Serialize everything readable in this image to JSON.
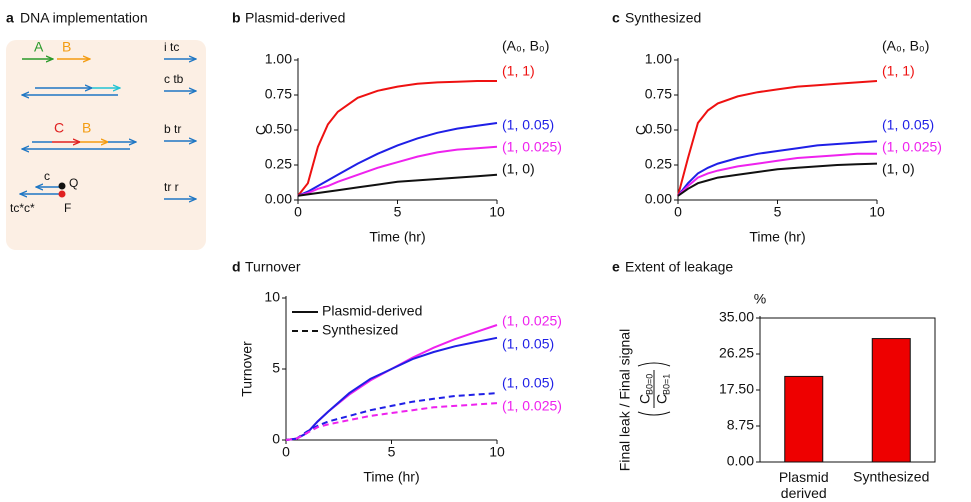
{
  "panel_a": {
    "letter": "a",
    "title": "DNA implementation",
    "top_labels": [
      "A",
      "B"
    ],
    "middle_labels": [
      "C",
      "B"
    ],
    "reporter": {
      "top": "c",
      "quencher": "Q",
      "bottom": "tc*c*",
      "fluor": "F"
    },
    "inputs": [
      "i tc",
      "c tb",
      "b tr",
      "tr r"
    ]
  },
  "chart_data": [
    {
      "type": "line",
      "letter": "b",
      "title": "Plasmid-derived",
      "xlabel": "Time (hr)",
      "ylabel": "C",
      "legend_title": "(A₀, B₀)",
      "xlim": [
        0,
        10
      ],
      "xticks": [
        0,
        5,
        10
      ],
      "ylim": [
        0,
        1
      ],
      "yticks": [
        {
          "value": 0,
          "label": "0.00"
        },
        {
          "value": 0.25,
          "label": "0.25"
        },
        {
          "value": 0.5,
          "label": "0.50"
        },
        {
          "value": 0.75,
          "label": "0.75"
        },
        {
          "value": 1,
          "label": "1.00"
        }
      ],
      "x": [
        0,
        0.5,
        1,
        1.5,
        2,
        3,
        4,
        5,
        6,
        7,
        8,
        9,
        10
      ],
      "series": [
        {
          "name": "(1, 1)",
          "color": "#ee1111",
          "values": [
            0.03,
            0.12,
            0.38,
            0.54,
            0.63,
            0.73,
            0.78,
            0.81,
            0.83,
            0.84,
            0.845,
            0.85,
            0.85
          ]
        },
        {
          "name": "(1, 0.05)",
          "color": "#1f1fe6",
          "values": [
            0.03,
            0.06,
            0.1,
            0.14,
            0.18,
            0.26,
            0.33,
            0.39,
            0.44,
            0.48,
            0.51,
            0.53,
            0.55
          ]
        },
        {
          "name": "(1, 0.025)",
          "color": "#ee22ee",
          "values": [
            0.03,
            0.05,
            0.08,
            0.1,
            0.13,
            0.18,
            0.23,
            0.27,
            0.31,
            0.34,
            0.36,
            0.37,
            0.38
          ]
        },
        {
          "name": "(1, 0)",
          "color": "#111111",
          "values": [
            0.03,
            0.04,
            0.05,
            0.06,
            0.07,
            0.09,
            0.11,
            0.13,
            0.14,
            0.15,
            0.16,
            0.17,
            0.18
          ]
        }
      ]
    },
    {
      "type": "line",
      "letter": "c",
      "title": "Synthesized",
      "xlabel": "Time (hr)",
      "ylabel": "C",
      "legend_title": "(A₀, B₀)",
      "xlim": [
        0,
        10
      ],
      "xticks": [
        0,
        5,
        10
      ],
      "ylim": [
        0,
        1
      ],
      "yticks": [
        {
          "value": 0,
          "label": "0.00"
        },
        {
          "value": 0.25,
          "label": "0.25"
        },
        {
          "value": 0.5,
          "label": "0.50"
        },
        {
          "value": 0.75,
          "label": "0.75"
        },
        {
          "value": 1,
          "label": "1.00"
        }
      ],
      "x": [
        0,
        0.5,
        1,
        1.5,
        2,
        3,
        4,
        5,
        6,
        7,
        8,
        9,
        10
      ],
      "series": [
        {
          "name": "(1, 1)",
          "color": "#ee1111",
          "values": [
            0.03,
            0.3,
            0.55,
            0.64,
            0.69,
            0.74,
            0.77,
            0.79,
            0.81,
            0.82,
            0.83,
            0.84,
            0.85
          ]
        },
        {
          "name": "(1, 0.05)",
          "color": "#1f1fe6",
          "values": [
            0.03,
            0.12,
            0.19,
            0.23,
            0.26,
            0.3,
            0.33,
            0.35,
            0.37,
            0.39,
            0.4,
            0.41,
            0.42
          ]
        },
        {
          "name": "(1, 0.025)",
          "color": "#ee22ee",
          "values": [
            0.03,
            0.1,
            0.16,
            0.19,
            0.21,
            0.24,
            0.26,
            0.28,
            0.3,
            0.31,
            0.32,
            0.33,
            0.33
          ]
        },
        {
          "name": "(1, 0)",
          "color": "#111111",
          "values": [
            0.03,
            0.08,
            0.12,
            0.14,
            0.16,
            0.18,
            0.2,
            0.22,
            0.23,
            0.24,
            0.25,
            0.255,
            0.26
          ]
        }
      ]
    },
    {
      "type": "line",
      "letter": "d",
      "title": "Turnover",
      "xlabel": "Time (hr)",
      "ylabel": "Turnover",
      "xlim": [
        0,
        10
      ],
      "xticks": [
        0,
        5,
        10
      ],
      "ylim": [
        0,
        10
      ],
      "yticks": [
        0,
        5,
        10
      ],
      "legend": [
        {
          "name": "Plasmid-derived",
          "dash": false
        },
        {
          "name": "Synthesized",
          "dash": true
        }
      ],
      "x": [
        0,
        0.5,
        1,
        1.5,
        2,
        3,
        4,
        5,
        6,
        7,
        8,
        9,
        10
      ],
      "series": [
        {
          "name": "(1, 0.025)",
          "color": "#ee22ee",
          "dash": false,
          "values": [
            0,
            0.1,
            0.5,
            1.3,
            2.0,
            3.2,
            4.2,
            5.0,
            5.8,
            6.5,
            7.1,
            7.6,
            8.1
          ]
        },
        {
          "name": "(1, 0.05)",
          "color": "#1f1fe6",
          "dash": false,
          "values": [
            0,
            0.1,
            0.5,
            1.3,
            2.0,
            3.3,
            4.3,
            5.0,
            5.7,
            6.2,
            6.6,
            6.9,
            7.2
          ]
        },
        {
          "name": "(1, 0.05)",
          "color": "#1f1fe6",
          "dash": true,
          "values": [
            0,
            0.1,
            0.6,
            1.0,
            1.3,
            1.7,
            2.1,
            2.4,
            2.7,
            2.9,
            3.1,
            3.2,
            3.3
          ]
        },
        {
          "name": "(1, 0.025)",
          "color": "#ee22ee",
          "dash": true,
          "values": [
            0,
            0.1,
            0.5,
            0.9,
            1.1,
            1.4,
            1.7,
            1.9,
            2.1,
            2.3,
            2.4,
            2.5,
            2.6
          ]
        }
      ]
    },
    {
      "type": "bar",
      "letter": "e",
      "title": "Extent of leakage",
      "ylabel": "Final leak / Final signal",
      "ylabel_ratio": {
        "numerator": "C",
        "numerator_sub": "B0=0",
        "denominator": "C",
        "denominator_sub": "B0=1"
      },
      "y_unit": "%",
      "categories": [
        "Plasmid derived",
        "Synthesized"
      ],
      "values": [
        20.8,
        30.0
      ],
      "color": "#ee0000",
      "ylim": [
        0,
        35
      ],
      "yticks": [
        {
          "value": 0,
          "label": "0.00"
        },
        {
          "value": 8.75,
          "label": "8.75"
        },
        {
          "value": 17.5,
          "label": "17.50"
        },
        {
          "value": 26.25,
          "label": "26.25"
        },
        {
          "value": 35,
          "label": "35.00"
        }
      ]
    }
  ]
}
